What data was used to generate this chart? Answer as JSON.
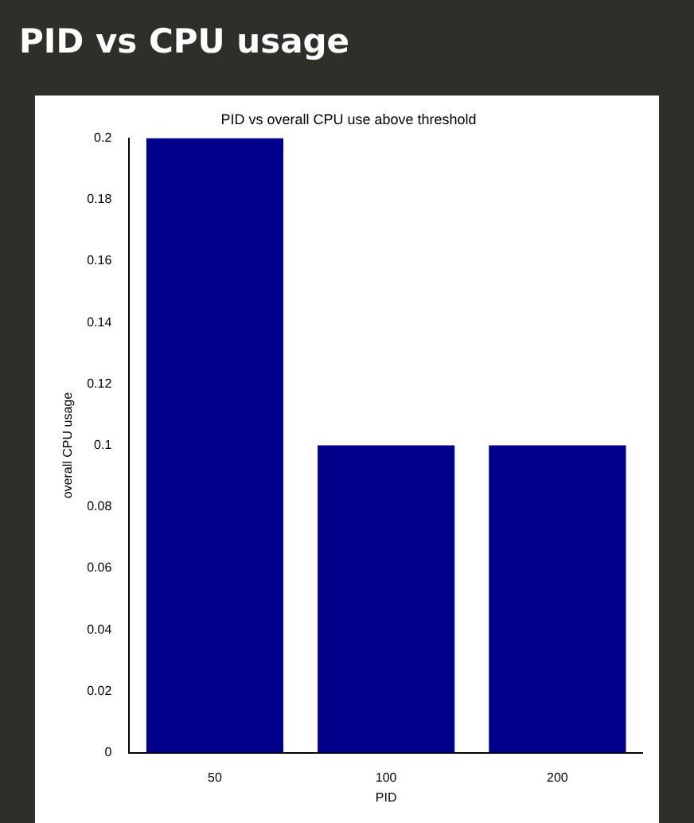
{
  "chart_data": {
    "type": "bar",
    "title": "PID vs CPU usage",
    "subtitle": "PID vs overall CPU use above threshold",
    "xlabel": "PID",
    "ylabel": "overall CPU usage",
    "categories": [
      "50",
      "100",
      "200"
    ],
    "values": [
      0.2,
      0.1,
      0.1
    ],
    "color": "#00008b",
    "ylim": [
      0,
      0.2
    ],
    "yticks": [
      0,
      0.02,
      0.04,
      0.06,
      0.08,
      0.1,
      0.12,
      0.14,
      0.16,
      0.18,
      0.2
    ],
    "grid": false
  }
}
